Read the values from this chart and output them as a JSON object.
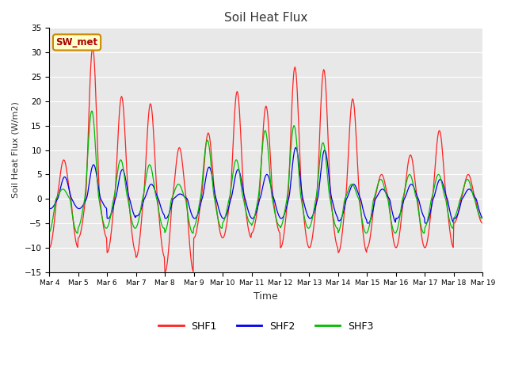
{
  "title": "Soil Heat Flux",
  "xlabel": "Time",
  "ylabel": "Soil Heat Flux (W/m2)",
  "ylim": [
    -15,
    35
  ],
  "yticks": [
    -15,
    -10,
    -5,
    0,
    5,
    10,
    15,
    20,
    25,
    30,
    35
  ],
  "annotation_text": "SW_met",
  "annotation_bg": "#ffffcc",
  "annotation_border": "#cc8800",
  "background_color": "#e8e8e8",
  "line_colors": {
    "SHF1": "#ff2222",
    "SHF2": "#0000ee",
    "SHF3": "#00bb00"
  },
  "x_tick_labels": [
    "Mar 4",
    "Mar 5",
    "Mar 6",
    "Mar 7",
    "Mar 8",
    "Mar 9",
    "Mar 10",
    "Mar 11",
    "Mar 12",
    "Mar 13",
    "Mar 14",
    "Mar 15",
    "Mar 16",
    "Mar 17",
    "Mar 18",
    "Mar 19"
  ],
  "num_days": 15,
  "points_per_day": 48,
  "shf1_day_peaks": [
    8,
    31,
    21,
    19.5,
    10.5,
    13.5,
    22,
    19,
    27,
    26.5,
    20.5,
    5,
    9,
    14,
    5
  ],
  "shf1_day_troughs": [
    -10,
    -8,
    -11,
    -12,
    -15,
    -8,
    -8,
    -7,
    -10,
    -10,
    -11,
    -10,
    -10,
    -10,
    -5
  ],
  "shf2_day_peaks": [
    4.5,
    7,
    6,
    3,
    1,
    6.5,
    6,
    5,
    10.5,
    10,
    3,
    2,
    3,
    4,
    2
  ],
  "shf2_day_troughs": [
    -2,
    -2,
    -4,
    -3.5,
    -4,
    -4,
    -4,
    -4,
    -4,
    -4,
    -4.5,
    -5,
    -4,
    -5,
    -4
  ],
  "shf3_day_peaks": [
    2,
    18,
    8,
    7,
    3,
    12,
    8,
    14,
    15,
    11.5,
    3,
    4,
    5,
    5,
    4
  ],
  "shf3_day_troughs": [
    -7,
    -6,
    -6,
    -6,
    -7,
    -6,
    -5,
    -5.5,
    -6,
    -6,
    -7,
    -7,
    -7,
    -6,
    -4
  ]
}
